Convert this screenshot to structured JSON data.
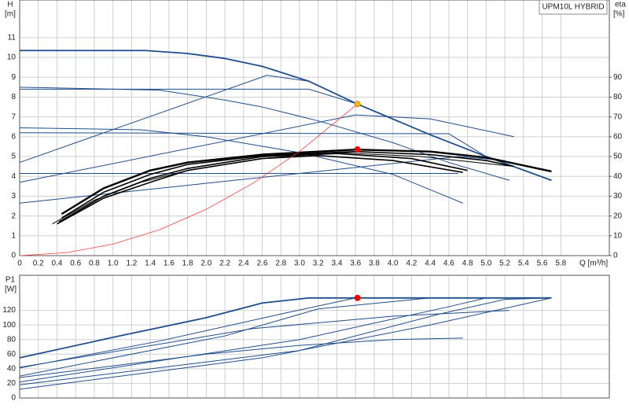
{
  "chart_data": [
    {
      "type": "line",
      "y_label_top": "H",
      "y_label_unit": "[m]",
      "y2_label_top": "eta",
      "y2_label_unit": "[%]",
      "legend_title": "UPM10L HYBRID",
      "x_label": "Q [m³/h]",
      "xlim": [
        0,
        6.32
      ],
      "ylim": [
        0,
        12.9
      ],
      "y2lim": [
        0,
        129
      ],
      "grid": true,
      "xticks": [
        0,
        0.2,
        0.4,
        0.6,
        0.8,
        {
          "value": 1,
          "label": "1.0"
        },
        1.2,
        1.4,
        1.6,
        1.8,
        {
          "value": 2,
          "label": "2.0"
        },
        2.2,
        2.4,
        2.6,
        2.8,
        {
          "value": 3,
          "label": "3.0"
        },
        3.2,
        3.4,
        3.6,
        3.8,
        {
          "value": 4,
          "label": "4.0"
        },
        4.2,
        4.4,
        4.6,
        4.8,
        {
          "value": 5,
          "label": "5.0"
        },
        5.2,
        5.4,
        5.6,
        5.8
      ],
      "yticks": [
        0,
        1,
        2,
        3,
        4,
        5,
        6,
        7,
        8,
        9,
        10,
        11
      ],
      "y2ticks": [
        0,
        10,
        20,
        30,
        40,
        50,
        60,
        70,
        80,
        90
      ],
      "series": [
        {
          "color": "#1f4e8c",
          "linewidth": 1.8,
          "x": [
            0,
            1.35,
            1.8,
            2.2,
            2.6,
            3.1,
            3.62,
            4.4,
            5.0,
            5.7
          ],
          "values": [
            10.35,
            10.35,
            10.2,
            9.95,
            9.55,
            8.8,
            7.65,
            6.1,
            5.0,
            3.8
          ]
        },
        {
          "color": "#1f4e8c",
          "linewidth": 1,
          "x": [
            0,
            3.1,
            3.62,
            4.4,
            5.0,
            5.7
          ],
          "values": [
            8.4,
            8.4,
            7.65,
            6.1,
            5.0,
            3.8
          ]
        },
        {
          "color": "#1f4e8c",
          "linewidth": 1,
          "x": [
            0,
            4.6,
            5.0,
            5.7
          ],
          "values": [
            6.2,
            6.15,
            5.0,
            3.8
          ]
        },
        {
          "color": "#1f4e8c",
          "linewidth": 1,
          "x": [
            0,
            4.7
          ],
          "values": [
            4.15,
            4.15
          ]
        },
        {
          "color": "#1f4e8c",
          "linewidth": 1,
          "x": [
            0,
            1.5,
            2.2,
            2.6,
            3.2,
            4.0,
            4.6,
            5.25
          ],
          "values": [
            8.5,
            8.35,
            7.85,
            7.5,
            6.8,
            5.7,
            4.7,
            3.8
          ]
        },
        {
          "color": "#1f4e8c",
          "linewidth": 1,
          "x": [
            0,
            1.3,
            2,
            3,
            4,
            4.75
          ],
          "values": [
            6.45,
            6.35,
            6.0,
            5.2,
            4.1,
            2.65
          ]
        },
        {
          "color": "#1f4e8c",
          "linewidth": 1,
          "x": [
            0,
            2.65,
            3.1
          ],
          "values": [
            4.7,
            9.1,
            8.8
          ]
        },
        {
          "color": "#1f4e8c",
          "linewidth": 1,
          "x": [
            0,
            3.6,
            4.4,
            5.3
          ],
          "values": [
            3.7,
            7.1,
            6.9,
            6.0
          ]
        },
        {
          "color": "#1f4e8c",
          "linewidth": 1,
          "x": [
            0,
            4.7,
            5.2
          ],
          "values": [
            2.65,
            5.0,
            4.8
          ]
        },
        {
          "color": "#000000",
          "linewidth": 2.4,
          "axis": "y2",
          "x": [
            0.45,
            0.9,
            1.4,
            1.8,
            2.6,
            3.6,
            4.4,
            5.0,
            5.7
          ],
          "values": [
            21,
            34,
            43,
            47,
            51,
            53.5,
            52.5,
            49.5,
            42.5
          ]
        },
        {
          "color": "#000000",
          "linewidth": 1.6,
          "axis": "y2",
          "x": [
            0.45,
            0.9,
            1.4,
            1.8,
            2.6,
            3.6,
            4.4,
            5.0,
            5.3
          ],
          "values": [
            19,
            32,
            41,
            46,
            50.5,
            52.5,
            51,
            48,
            45
          ]
        },
        {
          "color": "#000000",
          "linewidth": 1.6,
          "axis": "y2",
          "x": [
            0.42,
            0.9,
            1.4,
            1.8,
            2.6,
            3.4,
            4.2,
            4.8
          ],
          "values": [
            17,
            30,
            39,
            44,
            50,
            51.5,
            49,
            43
          ]
        },
        {
          "color": "#000000",
          "linewidth": 1.6,
          "axis": "y2",
          "x": [
            0.4,
            0.9,
            1.4,
            1.8,
            2.6,
            3.2,
            4.0,
            4.75
          ],
          "values": [
            16,
            29,
            37,
            43,
            49,
            50.5,
            48,
            42
          ]
        },
        {
          "color": "#000000",
          "linewidth": 1,
          "axis": "y2",
          "x": [
            0.35,
            0.8,
            1.3,
            1.8,
            2.6,
            3.4,
            4.3,
            5.3
          ],
          "values": [
            16,
            28,
            37,
            43,
            49,
            52,
            50,
            45
          ]
        },
        {
          "color": "#ff3b3b",
          "linewidth": 0.8,
          "x": [
            0,
            0.5,
            1,
            1.5,
            2,
            2.5,
            3,
            3.62
          ],
          "values": [
            0,
            0.15,
            0.58,
            1.31,
            2.34,
            3.65,
            5.26,
            7.65
          ]
        },
        {
          "color": "#ffc000",
          "marker": "circle",
          "x": [
            3.62
          ],
          "values": [
            7.65
          ]
        },
        {
          "color": "#ff0000",
          "marker": "circle",
          "axis": "y2",
          "x": [
            3.62
          ],
          "values": [
            53.6
          ]
        }
      ]
    },
    {
      "type": "line",
      "y_label_top": "P1",
      "y_label_unit": "[W]",
      "xlim": [
        0,
        6.32
      ],
      "ylim": [
        0,
        168
      ],
      "grid": true,
      "yticks": [
        0,
        20,
        40,
        60,
        80,
        100,
        120
      ],
      "series": [
        {
          "color": "#1f4e8c",
          "linewidth": 1.8,
          "x": [
            0,
            1,
            2,
            2.6,
            3.1,
            5.7
          ],
          "values": [
            55,
            83,
            110,
            130,
            137,
            137
          ]
        },
        {
          "color": "#1f4e8c",
          "linewidth": 1,
          "x": [
            0,
            1.5,
            2.8,
            3.6
          ],
          "values": [
            41,
            78,
            115,
            137
          ]
        },
        {
          "color": "#1f4e8c",
          "linewidth": 1,
          "x": [
            0,
            2.2,
            3.2,
            4.4
          ],
          "values": [
            30,
            85,
            122,
            137
          ]
        },
        {
          "color": "#1f4e8c",
          "linewidth": 1,
          "x": [
            0,
            3,
            4.6,
            5.0
          ],
          "values": [
            22,
            80,
            125,
            137
          ]
        },
        {
          "color": "#1f4e8c",
          "linewidth": 1,
          "x": [
            0,
            3,
            4.5,
            5.2,
            5.7
          ],
          "values": [
            18,
            65,
            115,
            135,
            137
          ]
        },
        {
          "color": "#1f4e8c",
          "linewidth": 1,
          "x": [
            0,
            2.6,
            4.4,
            5.7
          ],
          "values": [
            12,
            55,
            100,
            137
          ]
        },
        {
          "color": "#1f4e8c",
          "linewidth": 1,
          "x": [
            0,
            2,
            3,
            4,
            4.75
          ],
          "values": [
            28,
            60,
            72,
            80,
            82
          ]
        },
        {
          "color": "#1f4e8c",
          "linewidth": 1,
          "x": [
            0,
            2.5,
            4,
            5.25
          ],
          "values": [
            42,
            95,
            112,
            120
          ]
        },
        {
          "color": "#ff0000",
          "marker": "circle",
          "x": [
            3.62
          ],
          "values": [
            137
          ]
        }
      ]
    }
  ]
}
